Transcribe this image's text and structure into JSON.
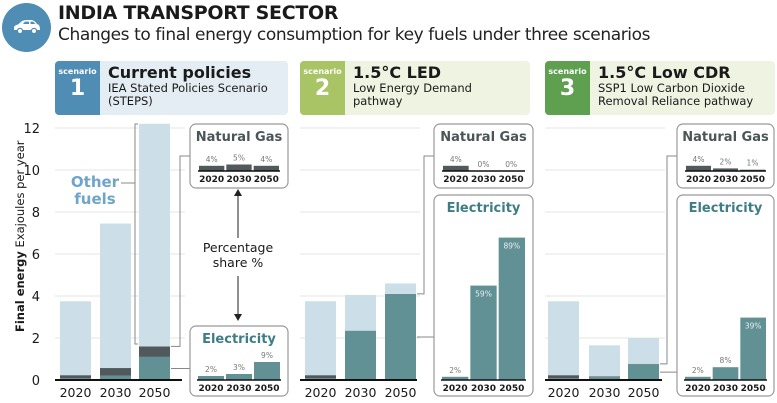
{
  "header": {
    "title": "INDIA TRANSPORT SECTOR",
    "subtitle": "Changes to final energy consumption for key fuels under three scenarios",
    "icon": "car-icon"
  },
  "scenarios": [
    {
      "label": "scenario",
      "number": "1",
      "name": "Current policies",
      "desc1": "IEA Stated Policies Scenario",
      "desc2": "(STEPS)",
      "accent": "#4f8db4",
      "bg": "#e4edf3"
    },
    {
      "label": "scenario",
      "number": "2",
      "name": "1.5°C LED",
      "desc1": "Low Energy Demand",
      "desc2": "pathway",
      "accent": "#a9c465",
      "bg": "#eef3e2"
    },
    {
      "label": "scenario",
      "number": "3",
      "name": "1.5°C Low CDR",
      "desc1": "SSP1 Low Carbon Dioxide",
      "desc2": "Removal Reliance pathway",
      "accent": "#5fa050",
      "bg": "#eef3e2"
    }
  ],
  "annotations": {
    "other_fuels": [
      "Other",
      "fuels"
    ],
    "percentage_share": [
      "Percentage",
      "share %"
    ]
  },
  "colors": {
    "other": "#ccdee8",
    "gas": "#505a5c",
    "electricity": "#629195",
    "other_label": "#6ea5c8",
    "electricity_title": "#3d7e84",
    "gas_title": "#4b5558"
  },
  "chart_data": {
    "type": "bar",
    "stacked": true,
    "title": "INDIA TRANSPORT SECTOR",
    "subtitle": "Changes to final energy consumption for key fuels under three scenarios",
    "ylabel_bold": "Final energy",
    "ylabel": "Exajoules per year",
    "ylim": [
      0,
      12
    ],
    "yticks": [
      0,
      2,
      4,
      6,
      8,
      10,
      12
    ],
    "grid": true,
    "categories": [
      "2020",
      "2030",
      "2050"
    ],
    "panels": [
      {
        "scenario": "Current policies",
        "series": [
          {
            "name": "Electricity",
            "values": [
              0.08,
              0.2,
              1.1
            ]
          },
          {
            "name": "Natural Gas",
            "values": [
              0.15,
              0.37,
              0.5
            ]
          },
          {
            "name": "Other fuels",
            "values": [
              3.52,
              6.88,
              10.6
            ]
          }
        ],
        "share_natural_gas": {
          "categories": [
            "2020",
            "2030",
            "2050"
          ],
          "values": [
            4,
            5,
            4
          ],
          "labels": [
            "4%",
            "5%",
            "4%"
          ]
        },
        "share_electricity": {
          "categories": [
            "2020",
            "2030",
            "2050"
          ],
          "values": [
            2,
            3,
            9
          ],
          "labels": [
            "2%",
            "3%",
            "9%"
          ]
        }
      },
      {
        "scenario": "1.5°C LED",
        "series": [
          {
            "name": "Electricity",
            "values": [
              0.08,
              2.35,
              4.1
            ]
          },
          {
            "name": "Natural Gas",
            "values": [
              0.15,
              0,
              0
            ]
          },
          {
            "name": "Other fuels",
            "values": [
              3.52,
              1.7,
              0.5
            ]
          }
        ],
        "share_natural_gas": {
          "categories": [
            "2020",
            "2030",
            "2050"
          ],
          "values": [
            4,
            0,
            0
          ],
          "labels": [
            "4%",
            "0%",
            "0%"
          ]
        },
        "share_electricity": {
          "categories": [
            "2020",
            "2030",
            "2050"
          ],
          "values": [
            2,
            59,
            89
          ],
          "labels": [
            "2%",
            "59%",
            "89%"
          ]
        }
      },
      {
        "scenario": "1.5°C Low CDR",
        "series": [
          {
            "name": "Electricity",
            "values": [
              0.08,
              0.13,
              0.75
            ]
          },
          {
            "name": "Natural Gas",
            "values": [
              0.15,
              0.04,
              0.02
            ]
          },
          {
            "name": "Other fuels",
            "values": [
              3.52,
              1.48,
              1.23
            ]
          }
        ],
        "share_natural_gas": {
          "categories": [
            "2020",
            "2030",
            "2050"
          ],
          "values": [
            4,
            2,
            1
          ],
          "labels": [
            "4%",
            "2%",
            "1%"
          ]
        },
        "share_electricity": {
          "categories": [
            "2020",
            "2030",
            "2050"
          ],
          "values": [
            2,
            8,
            39
          ],
          "labels": [
            "2%",
            "8%",
            "39%"
          ]
        }
      }
    ],
    "inset_titles": {
      "gas": "Natural Gas",
      "electricity": "Electricity"
    }
  }
}
